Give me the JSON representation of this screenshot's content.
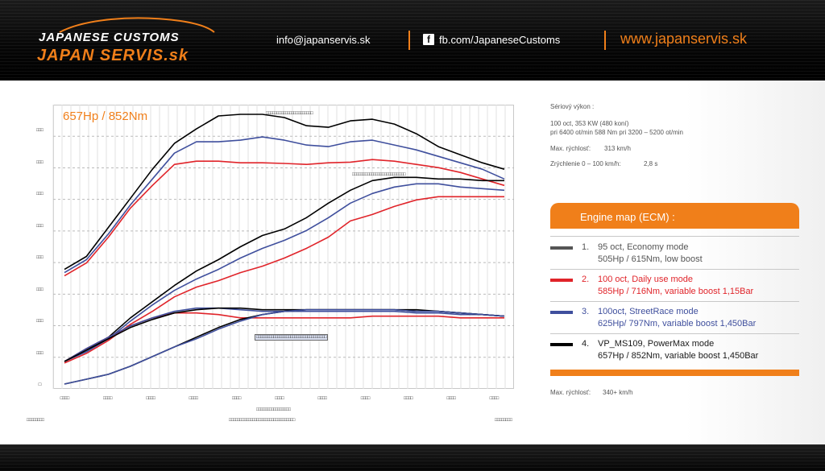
{
  "header": {
    "logo_top": "JAPANESE CUSTOMS",
    "logo_bottom": "JAPAN SERVIS.sk",
    "email": "info@japanservis.sk",
    "facebook": "fb.com/JapaneseCustoms",
    "website": "www.japanservis.sk",
    "accent_color": "#f07f1a"
  },
  "chart_title": "657Hp / 852Nm",
  "garbled": {
    "legend_top": "□□□□□□□□□□□□□□□□□□□□□□",
    "legend_right": "□□□□□□□□□□□□□□□□□□□□□□□□□",
    "legend_bottom": "□□□□□□□□□□□□□□□□□□□□□□□□□□□□□□□□□",
    "x_axis_title": "□□□□□□□□□□□□□□□□",
    "left_label": "□□□□□□□□",
    "center_label": "□□□□□□□□□□□□□□□□□□□□□□□□□□□□□□□",
    "right_label": "□□□□□□□□",
    "y_ticks": [
      "□□□",
      "□□□",
      "□□□",
      "□□□",
      "□□□",
      "□□□",
      "□□□",
      "□□□",
      "□"
    ],
    "x_ticks": [
      "□□□□",
      "□□□□",
      "□□□□",
      "□□□□",
      "□□□□",
      "□□□□",
      "□□□□",
      "□□□□",
      "□□□□",
      "□□□□",
      "□□□□"
    ]
  },
  "specs": {
    "title": "Sériový  výkon :",
    "line1": "100 oct, 353 KW (480 koní)",
    "line2": "pri 6400 ot/min 588 Nm pri 3200 – 5200 ot/min",
    "max_speed_label": "Max. rýchlosť:",
    "max_speed_value": "313 km/h",
    "accel_label": "Zrýchlenie 0 – 100 km/h:",
    "accel_value": "2,8 s"
  },
  "ecm": {
    "title": "Engine map (ECM) :",
    "modes": [
      {
        "num": "1.",
        "line1": "95 oct, Economy mode",
        "line2": "505Hp / 615Nm, low boost",
        "color": "#555555",
        "text_color": "#555555"
      },
      {
        "num": "2.",
        "line1": "100 oct, Daily use mode",
        "line2": "585Hp / 716Nm, variable boost 1,15Bar",
        "color": "#e0242a",
        "text_color": "#e0242a"
      },
      {
        "num": "3.",
        "line1": "100oct, StreetRace mode",
        "line2": "625Hp/ 797Nm, variable boost 1,450Bar",
        "color": "#3f4f9d",
        "text_color": "#3f4f9d"
      },
      {
        "num": "4.",
        "line1": "VP_MS109, PowerMax mode",
        "line2": "657Hp / 852Nm, variable boost 1,450Bar",
        "color": "#000000",
        "text_color": "#1a1a1a"
      }
    ]
  },
  "footer_speed_label": "Max. rýchlosť:",
  "footer_speed_value": "340+ km/h",
  "chart_data": {
    "type": "line",
    "title": "657Hp / 852Nm",
    "x_ticks": 11,
    "ylim": [
      0,
      8.8
    ],
    "y_ticks": 9,
    "grid": true,
    "x": [
      0,
      0.5,
      1,
      1.5,
      2,
      2.5,
      3,
      3.5,
      4,
      4.5,
      5,
      5.5,
      6,
      6.5,
      7,
      7.5,
      8,
      8.5,
      9,
      9.5,
      10
    ],
    "series": [
      {
        "color": "#e0242a",
        "values": [
          3.5,
          3.9,
          4.7,
          5.6,
          6.3,
          6.95,
          7.05,
          7.05,
          7.0,
          7.0,
          6.98,
          6.95,
          7.0,
          7.02,
          7.1,
          7.05,
          6.95,
          6.85,
          6.7,
          6.5,
          6.3
        ]
      },
      {
        "color": "#3f4f9d",
        "values": [
          3.6,
          4.0,
          4.8,
          5.7,
          6.5,
          7.3,
          7.65,
          7.65,
          7.7,
          7.8,
          7.7,
          7.55,
          7.5,
          7.65,
          7.7,
          7.55,
          7.4,
          7.2,
          7.0,
          6.8,
          6.5
        ]
      },
      {
        "color": "#000000",
        "values": [
          3.7,
          4.1,
          5.0,
          5.9,
          6.8,
          7.6,
          8.05,
          8.45,
          8.5,
          8.5,
          8.4,
          8.15,
          8.1,
          8.3,
          8.35,
          8.2,
          7.9,
          7.5,
          7.25,
          7.0,
          6.8
        ]
      },
      {
        "color": "#e0242a",
        "values": [
          0.8,
          1.1,
          1.5,
          2.0,
          2.4,
          2.85,
          3.15,
          3.35,
          3.6,
          3.8,
          4.05,
          4.35,
          4.7,
          5.2,
          5.4,
          5.65,
          5.85,
          5.95,
          5.95,
          5.95,
          5.95
        ]
      },
      {
        "color": "#3f4f9d",
        "values": [
          0.85,
          1.15,
          1.55,
          2.1,
          2.6,
          3.05,
          3.4,
          3.7,
          4.05,
          4.35,
          4.6,
          4.9,
          5.3,
          5.75,
          6.05,
          6.25,
          6.35,
          6.35,
          6.25,
          6.2,
          6.15
        ]
      },
      {
        "color": "#000000",
        "values": [
          0.85,
          1.2,
          1.6,
          2.2,
          2.7,
          3.2,
          3.65,
          4.0,
          4.4,
          4.75,
          4.95,
          5.3,
          5.75,
          6.15,
          6.45,
          6.55,
          6.55,
          6.5,
          6.5,
          6.45,
          6.45
        ]
      },
      {
        "color": "#e0242a",
        "values": [
          0.85,
          1.25,
          1.6,
          1.95,
          2.2,
          2.35,
          2.35,
          2.3,
          2.2,
          2.2,
          2.2,
          2.2,
          2.2,
          2.2,
          2.25,
          2.25,
          2.25,
          2.25,
          2.2,
          2.2,
          2.2
        ]
      },
      {
        "color": "#3f4f9d",
        "values": [
          0.85,
          1.25,
          1.6,
          1.95,
          2.2,
          2.4,
          2.5,
          2.5,
          2.45,
          2.4,
          2.4,
          2.4,
          2.4,
          2.4,
          2.4,
          2.4,
          2.35,
          2.35,
          2.3,
          2.3,
          2.25
        ]
      },
      {
        "color": "#000000",
        "values": [
          0.85,
          1.2,
          1.55,
          1.9,
          2.15,
          2.35,
          2.45,
          2.5,
          2.5,
          2.45,
          2.45,
          2.45,
          2.45,
          2.45,
          2.45,
          2.45,
          2.4,
          2.4,
          2.35,
          2.3,
          2.25
        ]
      },
      {
        "color": "#000000",
        "values": [
          0.15,
          0.3,
          0.45,
          0.7,
          1.0,
          1.3,
          1.6,
          1.9,
          2.15,
          2.3,
          2.4,
          2.45,
          2.45,
          2.45,
          2.45,
          2.45,
          2.45,
          2.4,
          2.35,
          2.3,
          2.25
        ]
      },
      {
        "color": "#3f4f9d",
        "values": [
          0.15,
          0.3,
          0.45,
          0.7,
          1.0,
          1.3,
          1.55,
          1.85,
          2.1,
          2.3,
          2.4,
          2.45,
          2.45,
          2.45,
          2.45,
          2.45,
          2.4,
          2.4,
          2.35,
          2.3,
          2.25
        ]
      }
    ]
  }
}
